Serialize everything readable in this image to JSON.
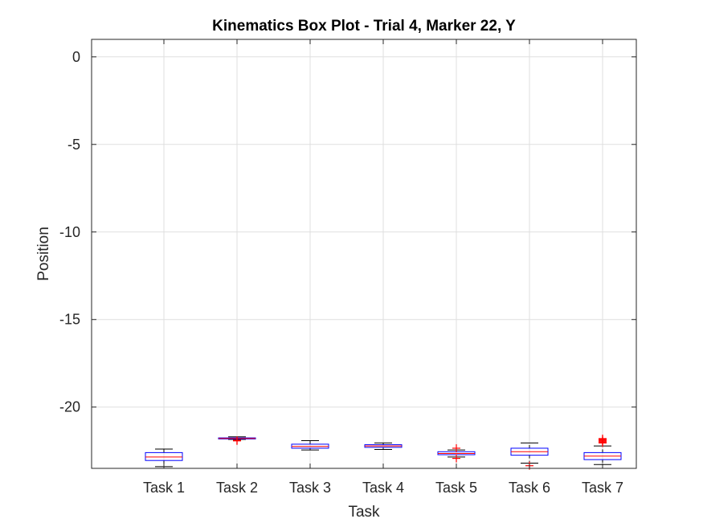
{
  "chart_data": {
    "type": "box",
    "title": "Kinematics Box Plot - Trial 4, Marker 22, Y",
    "xlabel": "Task",
    "ylabel": "Position",
    "categories": [
      "Task 1",
      "Task 2",
      "Task 3",
      "Task 4",
      "Task 5",
      "Task 6",
      "Task 7"
    ],
    "ylim": [
      -23.5,
      1
    ],
    "yticks": [
      0,
      -5,
      -10,
      -15,
      -20
    ],
    "ytick_labels": [
      "0",
      "-5",
      "-10",
      "-15",
      "-20"
    ],
    "grid": true,
    "colors": {
      "box": "#0000ff",
      "median": "#ff0000",
      "whisker": "#000000",
      "outlier": "#ff0000",
      "grid": "#dfdfdf"
    },
    "boxes": [
      {
        "category": "Task 1",
        "whisker_low": -23.4,
        "q1": -23.05,
        "median": -22.85,
        "q3": -22.6,
        "whisker_high": -22.4,
        "outliers": []
      },
      {
        "category": "Task 2",
        "whisker_low": -21.85,
        "q1": -21.82,
        "median": -21.79,
        "q3": -21.76,
        "whisker_high": -21.7,
        "outliers": [
          -21.93,
          -21.9
        ]
      },
      {
        "category": "Task 3",
        "whisker_low": -22.45,
        "q1": -22.35,
        "median": -22.25,
        "q3": -22.12,
        "whisker_high": -21.92,
        "outliers": []
      },
      {
        "category": "Task 4",
        "whisker_low": -22.42,
        "q1": -22.3,
        "median": -22.22,
        "q3": -22.15,
        "whisker_high": -22.05,
        "outliers": []
      },
      {
        "category": "Task 5",
        "whisker_low": -22.85,
        "q1": -22.72,
        "median": -22.65,
        "q3": -22.55,
        "whisker_high": -22.45,
        "outliers": [
          -22.35,
          -22.93
        ]
      },
      {
        "category": "Task 6",
        "whisker_low": -23.2,
        "q1": -22.75,
        "median": -22.55,
        "q3": -22.35,
        "whisker_high": -22.05,
        "outliers": [
          -23.35
        ]
      },
      {
        "category": "Task 7",
        "whisker_low": -23.28,
        "q1": -23.0,
        "median": -22.8,
        "q3": -22.6,
        "whisker_high": -22.22,
        "outliers": [
          -21.8,
          -21.85,
          -21.9,
          -21.95,
          -22.0,
          -22.05
        ]
      }
    ]
  }
}
